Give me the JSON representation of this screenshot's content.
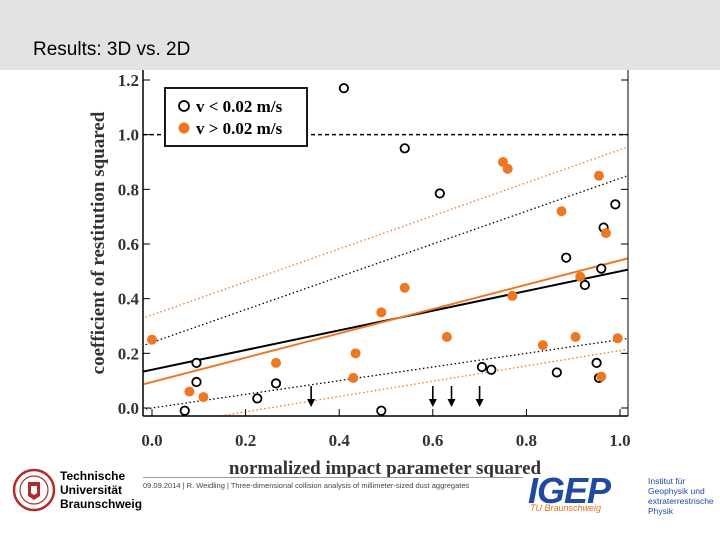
{
  "header": {
    "title": "Results: 3D vs. 2D"
  },
  "footer": {
    "text": "09.09.2014 | R. Weidling | Three-dimensional collision analysis of millimeter-sized dust aggregates"
  },
  "logos": {
    "tu": {
      "text": "Technische\nUniversität\nBraunschweig"
    },
    "igep": {
      "word": "IGEP",
      "sub": "TU Braunschweig",
      "inst": "Institut für\nGeophysik und\nextraterrestrische\nPhysik"
    }
  },
  "colors": {
    "orange": "#ee7722",
    "black": "#000000",
    "header_bg": "#e3e3e3",
    "igep_blue": "#1f4aa0"
  },
  "chart_data": {
    "type": "scatter",
    "xlabel": "normalized impact parameter squared",
    "ylabel": "coefficient of restitution squared",
    "xlim": [
      0.0,
      1.0
    ],
    "ylim": [
      0.0,
      1.2
    ],
    "x_ticks": [
      "0.0",
      "0.2",
      "0.4",
      "0.6",
      "0.8",
      "1.0"
    ],
    "y_ticks": [
      "0.0",
      "0.2",
      "0.4",
      "0.6",
      "0.8",
      "1.0",
      "1.2"
    ],
    "legend_position": "top-left",
    "reference_line_y": 1.0,
    "series": [
      {
        "name": "v < 0.02 m/s",
        "marker": "open-circle",
        "points": [
          [
            0.07,
            -0.01
          ],
          [
            0.095,
            0.165
          ],
          [
            0.095,
            0.095
          ],
          [
            0.225,
            0.035
          ],
          [
            0.265,
            0.09
          ],
          [
            0.41,
            1.17
          ],
          [
            0.49,
            -0.01
          ],
          [
            0.54,
            0.95
          ],
          [
            0.615,
            0.785
          ],
          [
            0.705,
            0.15
          ],
          [
            0.725,
            0.14
          ],
          [
            0.865,
            0.13
          ],
          [
            0.885,
            0.55
          ],
          [
            0.925,
            0.45
          ],
          [
            0.95,
            0.165
          ],
          [
            0.955,
            0.11
          ],
          [
            0.96,
            0.51
          ],
          [
            0.965,
            0.66
          ],
          [
            0.99,
            0.745
          ]
        ],
        "fit": [
          [
            0.0,
            0.14
          ],
          [
            1.0,
            0.5
          ]
        ],
        "band_upper": [
          [
            0.0,
            0.24
          ],
          [
            1.0,
            0.84
          ]
        ],
        "band_lower": [
          [
            0.0,
            0.0
          ],
          [
            1.0,
            0.25
          ]
        ]
      },
      {
        "name": "v > 0.02 m/s",
        "marker": "filled-circle",
        "points": [
          [
            0.0,
            0.25
          ],
          [
            0.08,
            0.06
          ],
          [
            0.11,
            0.04
          ],
          [
            0.265,
            0.165
          ],
          [
            0.435,
            0.2
          ],
          [
            0.43,
            0.11
          ],
          [
            0.49,
            0.35
          ],
          [
            0.54,
            0.44
          ],
          [
            0.63,
            0.26
          ],
          [
            0.75,
            0.9
          ],
          [
            0.76,
            0.875
          ],
          [
            0.77,
            0.41
          ],
          [
            0.835,
            0.23
          ],
          [
            0.875,
            0.72
          ],
          [
            0.905,
            0.26
          ],
          [
            0.915,
            0.48
          ],
          [
            0.955,
            0.85
          ],
          [
            0.97,
            0.64
          ],
          [
            0.96,
            0.115
          ],
          [
            0.995,
            0.255
          ]
        ],
        "fit": [
          [
            0.0,
            0.095
          ],
          [
            1.0,
            0.54
          ]
        ],
        "band_upper": [
          [
            0.0,
            0.34
          ],
          [
            1.0,
            0.945
          ]
        ],
        "band_lower": [
          [
            0.0,
            -0.07
          ],
          [
            1.0,
            0.21
          ]
        ]
      }
    ],
    "arrows_x": [
      0.34,
      0.6,
      0.64,
      0.7
    ]
  }
}
